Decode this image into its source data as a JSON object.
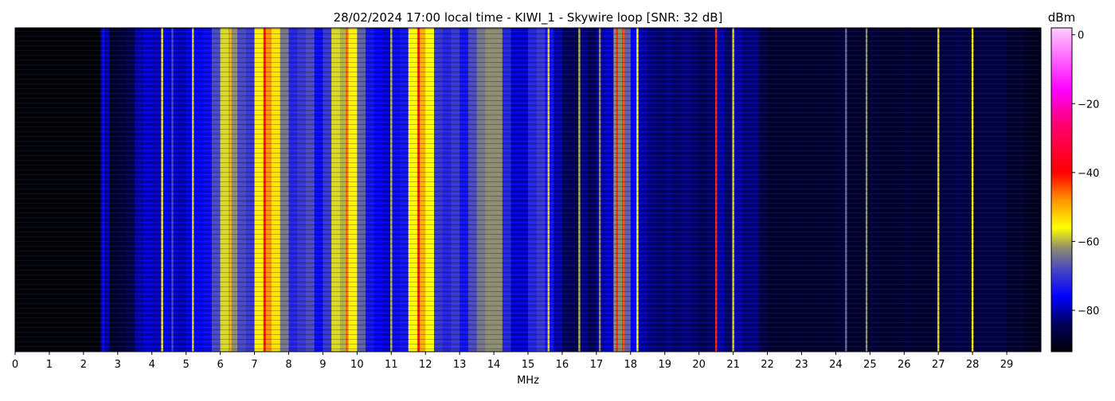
{
  "chart_data": {
    "type": "heatmap",
    "title": "28/02/2024 17:00 local time - KIWI_1 - Skywire loop [SNR: 32 dB]",
    "xlabel": "MHz",
    "ylabel": "",
    "xlim": [
      0,
      30
    ],
    "xticks": [
      "0",
      "1",
      "2",
      "3",
      "4",
      "5",
      "6",
      "7",
      "8",
      "9",
      "10",
      "11",
      "12",
      "13",
      "14",
      "15",
      "16",
      "17",
      "18",
      "19",
      "20",
      "21",
      "22",
      "23",
      "24",
      "25",
      "26",
      "27",
      "28",
      "29"
    ],
    "colorbar": {
      "label": "dBm",
      "range": [
        -92,
        2
      ],
      "ticks": [
        "0",
        "−20",
        "−40",
        "−60",
        "−80"
      ],
      "tick_values": [
        0,
        -20,
        -40,
        -60,
        -80
      ],
      "colormap_stops": [
        {
          "v": -92,
          "c": "#000008"
        },
        {
          "v": -84,
          "c": "#00005a"
        },
        {
          "v": -76,
          "c": "#0000ff"
        },
        {
          "v": -68,
          "c": "#4848c0"
        },
        {
          "v": -62,
          "c": "#8c8c70"
        },
        {
          "v": -56,
          "c": "#ffff00"
        },
        {
          "v": -48,
          "c": "#ff9400"
        },
        {
          "v": -40,
          "c": "#ff0000"
        },
        {
          "v": -26,
          "c": "#ff0070"
        },
        {
          "v": -16,
          "c": "#ff00ff"
        },
        {
          "v": 0,
          "c": "#ffb4ff"
        },
        {
          "v": 2,
          "c": "#ffd0ff"
        }
      ]
    },
    "bin_width_mhz": 0.25,
    "avg_level_dbm": [
      -92,
      -92,
      -92,
      -92,
      -92,
      -92,
      -92,
      -92,
      -92,
      -92,
      -80,
      -88,
      -87,
      -85,
      -80,
      -78,
      -79,
      -76,
      -78,
      -79,
      -77,
      -76,
      -75,
      -68,
      -58,
      -62,
      -68,
      -70,
      -55,
      -48,
      -54,
      -64,
      -72,
      -70,
      -68,
      -75,
      -70,
      -58,
      -60,
      -55,
      -66,
      -74,
      -76,
      -78,
      -75,
      -74,
      -56,
      -50,
      -56,
      -70,
      -72,
      -70,
      -74,
      -68,
      -64,
      -62,
      -62,
      -72,
      -78,
      -78,
      -72,
      -70,
      -74,
      -80,
      -84,
      -84,
      -82,
      -84,
      -80,
      -78,
      -62,
      -66,
      -76,
      -80,
      -82,
      -83,
      -82,
      -83,
      -82,
      -83,
      -84,
      -83,
      -80,
      -83,
      -80,
      -82,
      -82,
      -86,
      -88,
      -88,
      -88,
      -88,
      -88,
      -88,
      -88,
      -88,
      -87,
      -88,
      -88,
      -88,
      -87,
      -88,
      -88,
      -88,
      -87,
      -88,
      -88,
      -88,
      -86,
      -86,
      -85,
      -86,
      -86,
      -86,
      -86,
      -86,
      -88,
      -88,
      -89,
      -90
    ],
    "signals": [
      {
        "mhz": 2.58,
        "dbm": -75
      },
      {
        "mhz": 4.3,
        "dbm": -55
      },
      {
        "mhz": 4.6,
        "dbm": -68
      },
      {
        "mhz": 5.2,
        "dbm": -58
      },
      {
        "mhz": 6.3,
        "dbm": -50
      },
      {
        "mhz": 7.3,
        "dbm": -40
      },
      {
        "mhz": 9.7,
        "dbm": -45
      },
      {
        "mhz": 11.0,
        "dbm": -60
      },
      {
        "mhz": 11.8,
        "dbm": -40
      },
      {
        "mhz": 15.6,
        "dbm": -58
      },
      {
        "mhz": 16.5,
        "dbm": -60
      },
      {
        "mhz": 17.1,
        "dbm": -62
      },
      {
        "mhz": 17.6,
        "dbm": -42
      },
      {
        "mhz": 17.8,
        "dbm": -44
      },
      {
        "mhz": 18.2,
        "dbm": -56
      },
      {
        "mhz": 20.5,
        "dbm": -42
      },
      {
        "mhz": 21.0,
        "dbm": -58
      },
      {
        "mhz": 24.3,
        "dbm": -65
      },
      {
        "mhz": 24.9,
        "dbm": -62
      },
      {
        "mhz": 27.0,
        "dbm": -58
      },
      {
        "mhz": 28.0,
        "dbm": -55
      }
    ]
  }
}
